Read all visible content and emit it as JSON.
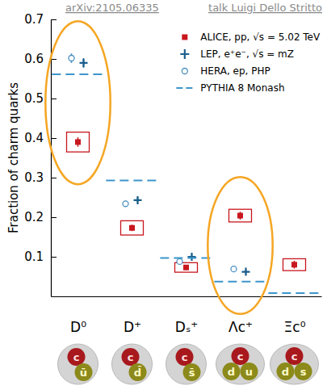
{
  "chart_data": {
    "type": "scatter",
    "source": "arXiv:2105.06335",
    "credit": "talk Luigi Dello Stritto",
    "y_label": "Fraction of charm quarks",
    "categories": [
      "D⁰",
      "D⁺",
      "Dₛ⁺",
      "Λc⁺",
      "Ξc⁰"
    ],
    "quark_content": [
      [
        "c",
        "ū"
      ],
      [
        "c",
        "d̄"
      ],
      [
        "c",
        "s̄"
      ],
      [
        "c",
        "d",
        "u"
      ],
      [
        "c",
        "d",
        "s"
      ]
    ],
    "highlighted_categories": [
      "D⁰",
      "Λc⁺"
    ],
    "series": [
      {
        "name": "ALICE, pp, √s = 5.02 TeV",
        "color": "#c8171e",
        "marker": "square",
        "values": [
          0.39,
          0.173,
          0.073,
          0.204,
          0.08
        ],
        "errors": [
          0.012,
          0.008,
          0.006,
          0.01,
          0.01
        ],
        "syst_errors": [
          0.025,
          0.018,
          0.012,
          0.016,
          0.015
        ]
      },
      {
        "name": "LEP, e⁺e⁻, √s = mZ",
        "color": "#1b5e8c",
        "marker": "plus",
        "values": [
          0.59,
          0.243,
          0.1,
          0.062,
          null
        ],
        "errors": [
          0.012,
          0.008,
          0.005,
          0.006,
          null
        ]
      },
      {
        "name": "HERA, ep, PHP",
        "color": "#4a90c2",
        "marker": "circle-open",
        "values": [
          0.602,
          0.234,
          0.088,
          0.069,
          null
        ],
        "errors": [
          0.012,
          0.008,
          0.007,
          0.006,
          null
        ]
      },
      {
        "name": "PYTHIA 8 Monash",
        "color": "#3d95cc",
        "type": "line",
        "line_style": "dashed",
        "values": [
          0.561,
          0.293,
          0.097,
          0.037,
          0.008
        ]
      }
    ],
    "ylim": [
      0,
      0.7
    ],
    "yticks": [
      0.1,
      0.2,
      0.3,
      0.4,
      0.5,
      0.6,
      0.7
    ],
    "legend": "top-right",
    "grid": false
  }
}
